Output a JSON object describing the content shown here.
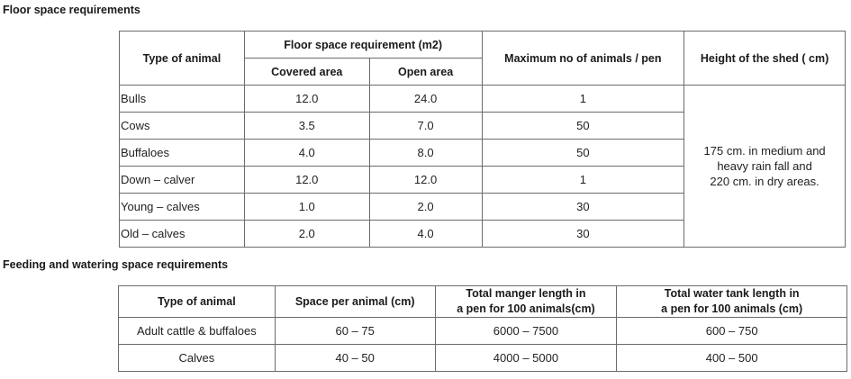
{
  "section1": {
    "heading": "Floor space requirements",
    "headers": {
      "type_of_animal": "Type of animal",
      "floor_space": "Floor space requirement (m2)",
      "covered_area": "Covered area",
      "open_area": "Open area",
      "max_animals": "Maximum no of animals / pen",
      "shed_height": "Height of the shed ( cm)"
    },
    "rows": [
      {
        "animal": "Bulls",
        "covered": "12.0",
        "open": "24.0",
        "max": "1"
      },
      {
        "animal": "Cows",
        "covered": "3.5",
        "open": "7.0",
        "max": "50"
      },
      {
        "animal": "Buffaloes",
        "covered": "4.0",
        "open": "8.0",
        "max": "50"
      },
      {
        "animal": "Down – calver",
        "covered": "12.0",
        "open": "12.0",
        "max": "1"
      },
      {
        "animal": "Young – calves",
        "covered": "1.0",
        "open": "2.0",
        "max": "30"
      },
      {
        "animal": "Old – calves",
        "covered": "2.0",
        "open": "4.0",
        "max": "30"
      }
    ],
    "shed_height_lines": [
      "175 cm. in medium and",
      "heavy rain fall and",
      "220 cm. in dry areas."
    ]
  },
  "section2": {
    "heading": "Feeding and watering space requirements",
    "headers": {
      "type_of_animal": "Type of animal",
      "space_per_animal": "Space per animal (cm)",
      "manger_line1": "Total manger length in",
      "manger_line2": "a pen for 100 animals(cm)",
      "tank_line1": "Total water tank length in",
      "tank_line2": "a pen for 100 animals (cm)"
    },
    "rows": [
      {
        "animal": "Adult cattle & buffaloes",
        "space": "60 – 75",
        "manger": "6000 – 7500",
        "tank": "600 – 750"
      },
      {
        "animal": "Calves",
        "space": "40 – 50",
        "manger": "4000 – 5000",
        "tank": "400 – 500"
      }
    ]
  }
}
